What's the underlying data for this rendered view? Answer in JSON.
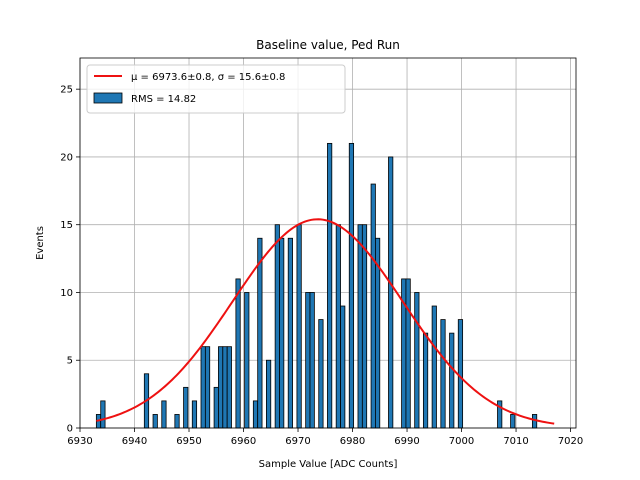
{
  "chart_data": {
    "type": "bar",
    "title": "Baseline value, Ped Run",
    "xlabel": "Sample Value [ADC Counts]",
    "ylabel": "Events",
    "xlim": [
      6930,
      7021
    ],
    "ylim": [
      0,
      27.3
    ],
    "grid": true,
    "x_ticks": [
      6930,
      6940,
      6950,
      6960,
      6970,
      6980,
      6990,
      7000,
      7010,
      7020
    ],
    "y_ticks": [
      0,
      5,
      10,
      15,
      20,
      25
    ],
    "histogram": {
      "name": "RMS = 14.82",
      "bin_start": 6933,
      "bin_width": 0.8,
      "counts": [
        1,
        2,
        0,
        0,
        0,
        0,
        0,
        0,
        0,
        0,
        0,
        4,
        0,
        1,
        0,
        2,
        0,
        0,
        1,
        0,
        3,
        0,
        2,
        0,
        6,
        6,
        0,
        3,
        6,
        6,
        6,
        0,
        11,
        0,
        10,
        0,
        2,
        14,
        0,
        5,
        0,
        15,
        14,
        0,
        14,
        0,
        15,
        0,
        10,
        10,
        0,
        8,
        0,
        21,
        0,
        15,
        9,
        0,
        21,
        0,
        15,
        15,
        0,
        18,
        14,
        0,
        0,
        20,
        0,
        0,
        11,
        11,
        0,
        10,
        0,
        7,
        0,
        9,
        0,
        8,
        0,
        7,
        0,
        8,
        0,
        0,
        0,
        0,
        0,
        0,
        0,
        0,
        2,
        0,
        0,
        1,
        0,
        0,
        0,
        0,
        1
      ],
      "fill_color": "#1f77b4",
      "edge_color": "#000000"
    },
    "fit": {
      "name": "μ = 6973.6±0.8, σ = 15.6±0.8",
      "mu": 6973.6,
      "sigma": 15.6,
      "amplitude": 15.4,
      "x_range": [
        6933,
        7017
      ],
      "color": "#ee1111"
    },
    "legend": {
      "placement": "top-left",
      "fit_label": "μ = 6973.6±0.8, σ = 15.6±0.8",
      "hist_label": "RMS = 14.82"
    }
  }
}
